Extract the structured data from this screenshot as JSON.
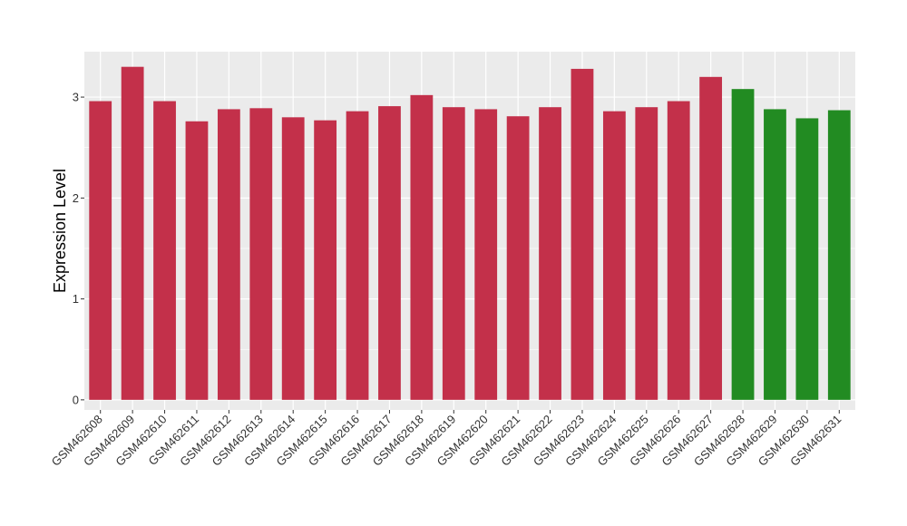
{
  "chart_data": {
    "type": "bar",
    "title": "",
    "xlabel": "",
    "ylabel": "Expression Level",
    "ylim": [
      -0.1,
      3.45
    ],
    "yticks": [
      0,
      1,
      2,
      3
    ],
    "grid": true,
    "categories": [
      "GSM462608",
      "GSM462609",
      "GSM462610",
      "GSM462611",
      "GSM462612",
      "GSM462613",
      "GSM462614",
      "GSM462615",
      "GSM462616",
      "GSM462617",
      "GSM462618",
      "GSM462619",
      "GSM462620",
      "GSM462621",
      "GSM462622",
      "GSM462623",
      "GSM462624",
      "GSM462625",
      "GSM462626",
      "GSM462627",
      "GSM462628",
      "GSM462629",
      "GSM462630",
      "GSM462631"
    ],
    "values": [
      2.96,
      3.3,
      2.96,
      2.76,
      2.88,
      2.89,
      2.8,
      2.77,
      2.86,
      2.91,
      3.02,
      2.9,
      2.88,
      2.81,
      2.9,
      3.28,
      2.86,
      2.9,
      2.96,
      3.2,
      3.08,
      2.88,
      2.79,
      2.87
    ],
    "groups": [
      "a",
      "a",
      "a",
      "a",
      "a",
      "a",
      "a",
      "a",
      "a",
      "a",
      "a",
      "a",
      "a",
      "a",
      "a",
      "a",
      "a",
      "a",
      "a",
      "a",
      "b",
      "b",
      "b",
      "b"
    ],
    "colors": {
      "a": "#c3304a",
      "b": "#228b22",
      "panel": "#ebebeb",
      "grid": "#ffffff"
    }
  }
}
